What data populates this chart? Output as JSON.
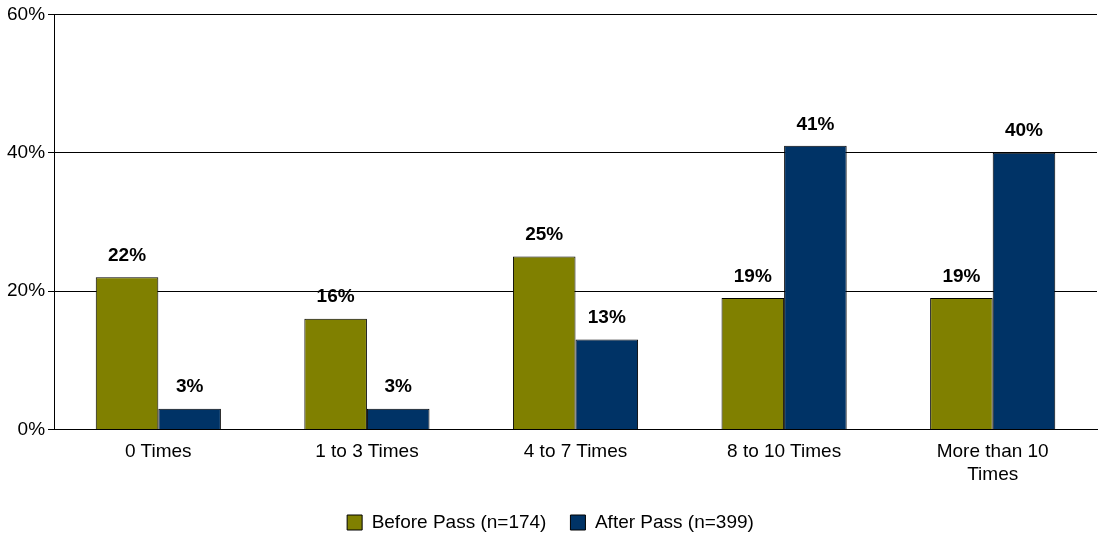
{
  "chart_data": {
    "type": "bar",
    "categories": [
      "0 Times",
      "1 to 3 Times",
      "4 to 7 Times",
      "8 to 10 Times",
      "More than 10 Times"
    ],
    "series": [
      {
        "name": "Before Pass (n=174)",
        "color": "#808000",
        "values": [
          22,
          16,
          25,
          19,
          19
        ],
        "value_labels": [
          "22%",
          "16%",
          "25%",
          "19%",
          "19%"
        ]
      },
      {
        "name": "After Pass (n=399)",
        "color": "#003366",
        "values": [
          3,
          3,
          13,
          41,
          40
        ],
        "value_labels": [
          "3%",
          "3%",
          "13%",
          "41%",
          "40%"
        ]
      }
    ],
    "ylim": [
      0,
      60
    ],
    "yticks": [
      {
        "value": 0,
        "label": "0%"
      },
      {
        "value": 20,
        "label": "20%"
      },
      {
        "value": 40,
        "label": "40%"
      },
      {
        "value": 60,
        "label": "60%"
      }
    ],
    "grid": "y",
    "legend": "bottom"
  }
}
